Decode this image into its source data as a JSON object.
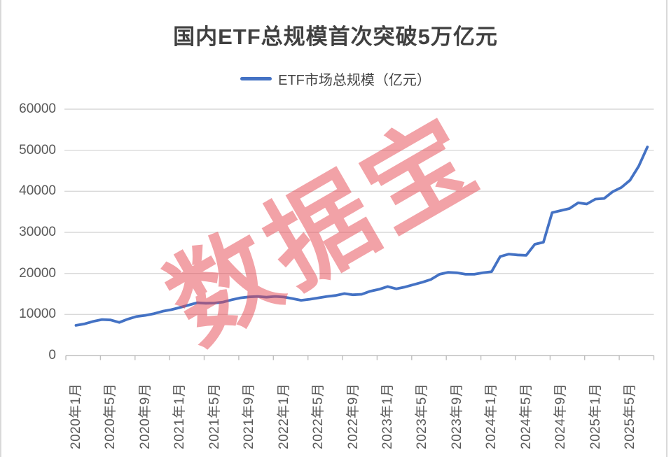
{
  "header": {
    "title": "国内ETF总规模首次突破5万亿元"
  },
  "legend": {
    "label": "ETF市场总规模（亿元）"
  },
  "watermark": {
    "text": "数据宝"
  },
  "style": {
    "line_color": "#4472C4",
    "grid_color": "#D9D9D9",
    "axis_color": "#BFBFBF",
    "tick_label_color": "#595959",
    "title_color": "#404040",
    "watermark_color": "rgba(229,70,80,0.5)",
    "frame_edge_color": "#D9D9D9",
    "background": "#FFFFFF"
  },
  "chart_data": {
    "type": "line",
    "title": "国内ETF总规模首次突破5万亿元",
    "grid": "horizontal",
    "legend_position": "top",
    "x_frequency": "monthly",
    "x_label_interval": 4,
    "x_tick_labels": [
      "2020年1月",
      "2020年5月",
      "2020年9月",
      "2021年1月",
      "2021年5月",
      "2021年9月",
      "2022年1月",
      "2022年5月",
      "2022年9月",
      "2023年1月",
      "2023年5月",
      "2023年9月",
      "2024年1月",
      "2024年5月",
      "2024年9月",
      "2025年1月",
      "2025年5月"
    ],
    "ylim": [
      0,
      60000
    ],
    "yticks": [
      0,
      10000,
      20000,
      30000,
      40000,
      50000,
      60000
    ],
    "series": [
      {
        "name": "ETF市场总规模（亿元）",
        "values": [
          7350,
          7720,
          8310,
          8760,
          8660,
          8070,
          8880,
          9510,
          9790,
          10200,
          10780,
          11170,
          11700,
          12280,
          12850,
          12740,
          12790,
          13020,
          13590,
          14050,
          14280,
          14390,
          14220,
          14390,
          14250,
          13880,
          13450,
          13700,
          14050,
          14390,
          14630,
          15090,
          14790,
          14910,
          15660,
          16120,
          16810,
          16240,
          16690,
          17270,
          17840,
          18530,
          19790,
          20260,
          20140,
          19790,
          19790,
          20140,
          20400,
          24100,
          24700,
          24500,
          24400,
          27100,
          27600,
          34800,
          35300,
          35800,
          37200,
          36900,
          38100,
          38250,
          39900,
          40950,
          42700,
          46100,
          50800
        ]
      }
    ]
  }
}
